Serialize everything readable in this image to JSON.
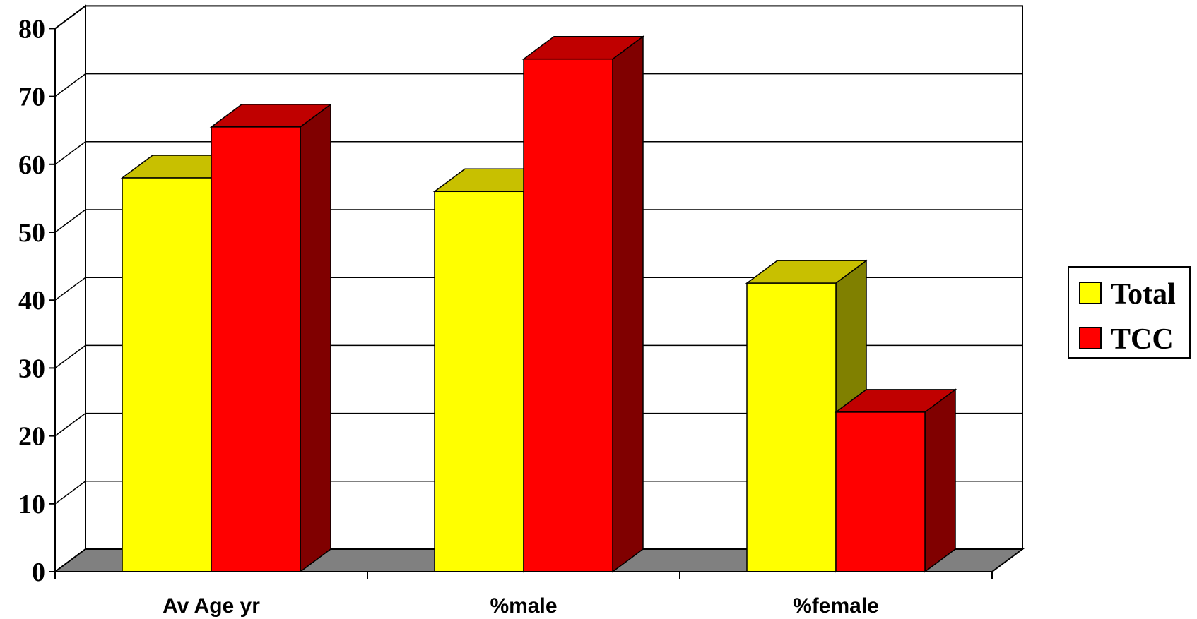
{
  "chart_data": {
    "type": "bar",
    "style": "3d-clustered",
    "categories": [
      "Av Age yr",
      "%male",
      "%female"
    ],
    "series": [
      {
        "name": "Total",
        "values": [
          58,
          56,
          42.5
        ]
      },
      {
        "name": "TCC",
        "values": [
          65.5,
          75.5,
          23.5
        ]
      }
    ],
    "ylim": [
      0,
      80
    ],
    "yticks": [
      "0",
      "10",
      "20",
      "30",
      "40",
      "50",
      "60",
      "70",
      "80"
    ],
    "grid": true,
    "legend_position": "right",
    "title": "",
    "xlabel": "",
    "ylabel": ""
  },
  "colors": {
    "total_front": "#FFFF00",
    "total_top": "#C8C000",
    "total_side": "#808000",
    "tcc_front": "#FF0000",
    "tcc_top": "#C00000",
    "tcc_side": "#800000",
    "floor": "#808080"
  }
}
